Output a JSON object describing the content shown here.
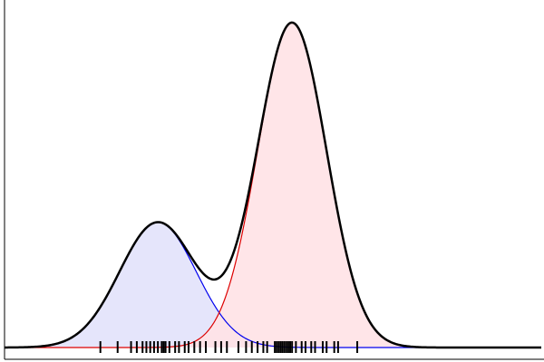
{
  "chart_data": {
    "type": "area",
    "title": "",
    "xlabel": "",
    "ylabel": "",
    "xlim": [
      -4,
      10
    ],
    "ylim": [
      0,
      0.32
    ],
    "grid": false,
    "legend": "none",
    "components": [
      {
        "weight": 0.3,
        "mean": 0.0,
        "sd": 1.0,
        "line_color": "#0000ee",
        "fill_color": "#e2e2fb"
      },
      {
        "weight": 0.7,
        "mean": 3.5,
        "sd": 0.9,
        "line_color": "#dd0000",
        "fill_color": "#ffe2e5"
      }
    ],
    "mixture": {
      "line_color": "#000000"
    },
    "rug": [
      -1.5,
      -1.05,
      -0.7,
      -0.55,
      -0.4,
      -0.3,
      -0.2,
      -0.1,
      0.0,
      0.1,
      0.15,
      0.2,
      0.3,
      0.45,
      0.55,
      0.7,
      0.8,
      0.95,
      1.1,
      1.25,
      1.5,
      1.65,
      1.8,
      2.1,
      2.3,
      2.45,
      2.6,
      2.75,
      2.85,
      3.05,
      3.1,
      3.15,
      3.2,
      3.25,
      3.3,
      3.35,
      3.4,
      3.45,
      3.5,
      3.6,
      3.75,
      3.85,
      4.0,
      4.1,
      4.3,
      4.4,
      4.6,
      4.7,
      5.2
    ]
  }
}
